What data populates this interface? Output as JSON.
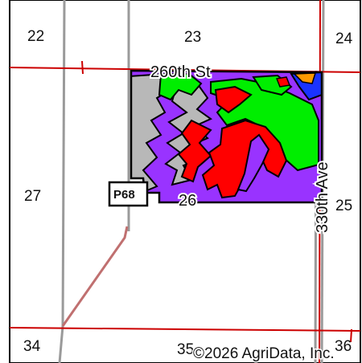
{
  "map": {
    "sections": {
      "s22": "22",
      "s23": "23",
      "s24": "24",
      "s25": "25",
      "s26": "26",
      "s27": "27",
      "s34": "34",
      "s35": "35",
      "s36": "36"
    },
    "roads": {
      "north": "260th St",
      "east": "330th Ave"
    },
    "shield": "P68",
    "copyright": "©2026 AgriData, Inc.",
    "colors": {
      "gray_zone": "#b8b8b8",
      "green_zone": "#00ee00",
      "purple_zone": "#9933ff",
      "red_zone": "#ff0000",
      "blue_zone": "#1a33ff",
      "orange_zone": "#ff9900",
      "section_line": "#cc0000",
      "road_line": "#999999",
      "outline": "#000000"
    }
  }
}
